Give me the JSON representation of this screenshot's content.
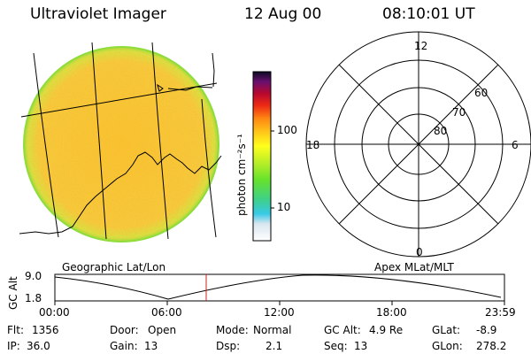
{
  "header": {
    "instrument": "Ultraviolet Imager",
    "date": "12 Aug 00",
    "time": "08:10:01 UT"
  },
  "colorbar": {
    "ticks": [
      "100",
      "10"
    ],
    "unit_label": "photon cm⁻²s⁻¹"
  },
  "polar_plot": {
    "clock_labels": [
      "12",
      "18",
      "6",
      "0"
    ],
    "lat_labels": [
      "60",
      "70",
      "80"
    ]
  },
  "panels": {
    "left_caption": "Geographic Lat/Lon",
    "right_caption": "Apex MLat/MLT"
  },
  "altitude_strip": {
    "axis_label": "GC Alt",
    "y_ticks": [
      "9.0",
      "1.8"
    ],
    "x_ticks": [
      "00:00",
      "06:00",
      "12:00",
      "18:00",
      "23:59"
    ]
  },
  "info": {
    "row1": [
      {
        "label": "Flt:",
        "value": "1356"
      },
      {
        "label": "Door:",
        "value": "Open"
      },
      {
        "label": "Mode:",
        "value": "Normal"
      },
      {
        "label": "GC Alt:",
        "value": "4.9 Re"
      },
      {
        "label": "GLat:",
        "value": "-8.9"
      }
    ],
    "row2": [
      {
        "label": "IP:",
        "value": "36.0"
      },
      {
        "label": "Gain:",
        "value": "13"
      },
      {
        "label": "Dsp:",
        "value": "2.1"
      },
      {
        "label": "Seq:",
        "value": "13"
      },
      {
        "label": "GLon:",
        "value": "278.2"
      }
    ]
  },
  "colors": {
    "disk_base": "#f7c530",
    "disk_rim": "#9adf3a",
    "marker": "#cc2222"
  }
}
